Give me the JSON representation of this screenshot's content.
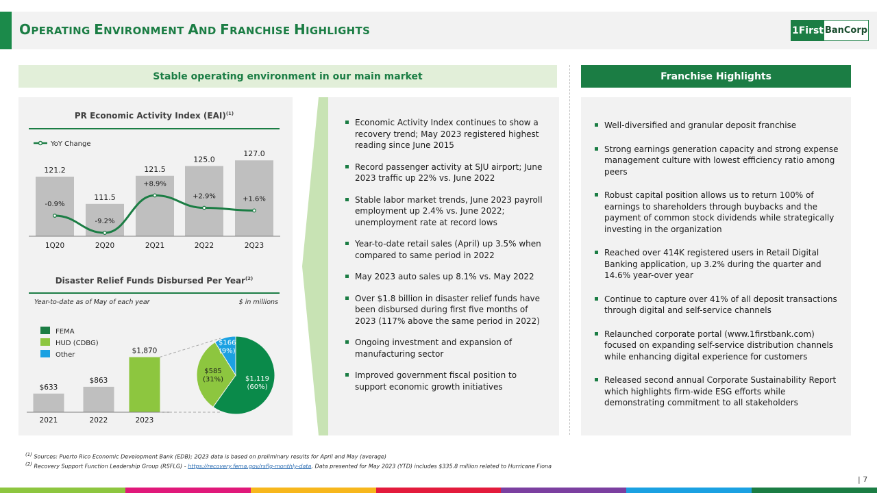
{
  "header": {
    "title": "Operating Environment and Franchise Highlights",
    "logo_left": "1First",
    "logo_right": "BanCorp"
  },
  "left_section_title": "Stable operating environment in our main market",
  "right_section_title": "Franchise Highlights",
  "chart_data": [
    {
      "type": "bar",
      "title": "PR Economic Activity Index (EAI)",
      "title_sup": "(1)",
      "categories": [
        "1Q20",
        "2Q20",
        "2Q21",
        "2Q22",
        "2Q23"
      ],
      "values": [
        121.2,
        111.5,
        121.5,
        125.0,
        127.0
      ],
      "value_labels": [
        "121.2",
        "111.5",
        "121.5",
        "125.0",
        "127.0"
      ],
      "line_series": {
        "name": "YoY Change",
        "values": [
          -0.9,
          -9.2,
          8.9,
          2.9,
          1.6
        ],
        "labels": [
          "-0.9%",
          "-9.2%",
          "+8.9%",
          "+2.9%",
          "+1.6%"
        ]
      },
      "bar_color": "#bfbfbf",
      "line_color": "#1b7d44"
    },
    {
      "type": "bar",
      "title": "Disaster Relief Funds Disbursed Per Year",
      "title_sup": "(2)",
      "note_left": "Year-to-date as of May of each year",
      "note_right": "$ in millions",
      "categories": [
        "2021",
        "2022",
        "2023"
      ],
      "values": [
        633,
        863,
        1870
      ],
      "value_labels": [
        "$633",
        "$863",
        "$1,870"
      ],
      "bar_colors": [
        "#bfbfbf",
        "#bfbfbf",
        "#8dc63f"
      ]
    },
    {
      "type": "pie",
      "legend": [
        {
          "label": "FEMA",
          "color": "#1b7d44"
        },
        {
          "label": "HUD (CDBG)",
          "color": "#8dc63f"
        },
        {
          "label": "Other",
          "color": "#1ba1e2"
        }
      ],
      "slices": [
        {
          "name": "FEMA",
          "value": 1119,
          "label": "$1,119",
          "pct": "(60%)",
          "color": "#0a8a4a"
        },
        {
          "name": "HUD (CDBG)",
          "value": 585,
          "label": "$585",
          "pct": "(31%)",
          "color": "#8dc63f"
        },
        {
          "name": "Other",
          "value": 166,
          "label": "$166",
          "pct": "(9%)",
          "color": "#1ba1e2"
        }
      ]
    }
  ],
  "market_bullets": [
    "Economic Activity Index continues to show a recovery trend; May 2023 registered highest reading since June 2015",
    "Record passenger activity at SJU airport; June 2023 traffic up 22% vs. June 2022",
    "Stable labor market trends, June 2023 payroll employment up 2.4% vs. June 2022; unemployment rate at record lows",
    "Year-to-date retail sales (April) up 3.5% when compared to same period in 2022",
    "May 2023 auto sales up 8.1% vs. May 2022",
    "Over $1.8 billion in disaster relief funds have been disbursed during first five months of 2023 (117% above the same period in 2022)",
    "Ongoing investment and expansion of manufacturing sector",
    "Improved government fiscal position to support economic growth initiatives"
  ],
  "franchise_bullets": [
    "Well-diversified and granular deposit franchise",
    "Strong earnings generation capacity and strong expense management culture with lowest efficiency ratio among peers",
    "Robust capital position allows us to return 100% of earnings to shareholders through buybacks and the payment of common stock dividends while strategically investing in the organization",
    "Reached over 414K registered users in Retail Digital Banking application, up 3.2% during the quarter and 14.6% year-over year",
    "Continue to capture over 41% of all deposit transactions through digital and self-service channels",
    "Relaunched corporate portal (www.1firstbank.com) focused on expanding self-service distribution channels while enhancing digital experience for customers",
    "Released second annual Corporate Sustainability Report which highlights firm-wide ESG efforts while demonstrating commitment to all stakeholders"
  ],
  "footnotes": {
    "f1_marker": "(1)",
    "f1": "Sources: Puerto Rico Economic Development Bank (EDB); 2Q23 data is based on preliminary results for April and May (average)",
    "f2_marker": "(2)",
    "f2_pre": "Recovery Support Function Leadership Group (RSFLG) - ",
    "f2_link": "https://recovery.fema.gov/rsflg-monthly-data",
    "f2_post": ". Data presented for May 2023 (YTD) includes $335.8 million related to Hurricane Fiona"
  },
  "page_number": "| 7",
  "colors": {
    "brand_green": "#1b7d44",
    "light_green": "#e2efd9",
    "bottom_strip": [
      "#8dc63f",
      "#e0187a",
      "#f7b71d",
      "#e31b3c",
      "#7b3fa0",
      "#1ba1e2",
      "#1b7d44"
    ]
  }
}
